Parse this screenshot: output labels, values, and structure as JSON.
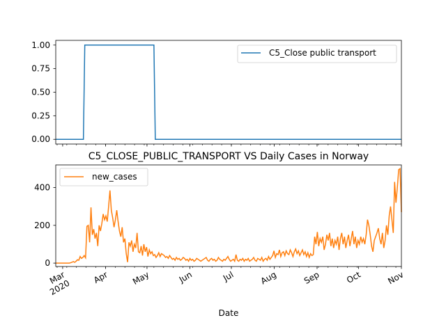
{
  "chart_data": [
    {
      "type": "line",
      "title": "",
      "xlabel": "",
      "ylabel": "",
      "x_range": [
        "2020-02-25",
        "2020-11-01"
      ],
      "ylim": [
        -0.05,
        1.05
      ],
      "y_ticks": [
        "0.00",
        "0.25",
        "0.50",
        "0.75",
        "1.00"
      ],
      "grid": false,
      "legend_position": "top-right",
      "series": [
        {
          "name": "C5_Close public transport",
          "color": "#1f77b4",
          "step_points": [
            {
              "date": "2020-02-25",
              "value": 0
            },
            {
              "date": "2020-03-16",
              "value": 0
            },
            {
              "date": "2020-03-17",
              "value": 1
            },
            {
              "date": "2020-05-06",
              "value": 1
            },
            {
              "date": "2020-05-07",
              "value": 0
            },
            {
              "date": "2020-11-01",
              "value": 0
            }
          ]
        }
      ]
    },
    {
      "type": "line",
      "title": "C5_CLOSE_PUBLIC_TRANSPORT VS Daily Cases in Norway",
      "xlabel": "Date",
      "ylabel": "",
      "x_range": [
        "2020-02-25",
        "2020-11-01"
      ],
      "ylim": [
        -18,
        520
      ],
      "y_ticks": [
        "0",
        "200",
        "400"
      ],
      "x_ticks": [
        {
          "label": "Mar\n2020",
          "date": "2020-03-01"
        },
        {
          "label": "Apr",
          "date": "2020-04-01"
        },
        {
          "label": "May",
          "date": "2020-05-01"
        },
        {
          "label": "Jun",
          "date": "2020-06-01"
        },
        {
          "label": "Jul",
          "date": "2020-07-01"
        },
        {
          "label": "Aug",
          "date": "2020-08-01"
        },
        {
          "label": "Sep",
          "date": "2020-09-01"
        },
        {
          "label": "Oct",
          "date": "2020-10-01"
        },
        {
          "label": "Nov",
          "date": "2020-11-01"
        }
      ],
      "grid": false,
      "legend_position": "top-left",
      "series": [
        {
          "name": "new_cases",
          "color": "#ff7f0e",
          "start_date": "2020-02-25",
          "values": [
            0,
            0,
            0,
            0,
            0,
            0,
            0,
            0,
            0,
            0,
            0,
            2,
            5,
            8,
            4,
            10,
            18,
            15,
            35,
            25,
            30,
            40,
            28,
            195,
            200,
            110,
            295,
            150,
            180,
            130,
            160,
            90,
            200,
            170,
            210,
            260,
            230,
            250,
            220,
            300,
            385,
            280,
            240,
            190,
            230,
            280,
            220,
            170,
            140,
            190,
            110,
            130,
            50,
            5,
            110,
            90,
            120,
            60,
            100,
            80,
            160,
            60,
            55,
            90,
            40,
            100,
            60,
            85,
            35,
            70,
            50,
            60,
            40,
            45,
            30,
            40,
            55,
            35,
            50,
            45,
            40,
            30,
            35,
            25,
            40,
            30,
            20,
            25,
            15,
            30,
            20,
            25,
            15,
            20,
            30,
            25,
            15,
            20,
            10,
            25,
            15,
            20,
            10,
            15,
            25,
            20,
            15,
            10,
            15,
            20,
            25,
            30,
            15,
            10,
            20,
            25,
            15,
            20,
            10,
            15,
            30,
            20,
            15,
            10,
            20,
            15,
            25,
            35,
            20,
            10,
            15,
            20,
            10,
            45,
            15,
            10,
            20,
            15,
            25,
            10,
            20,
            15,
            25,
            10,
            15,
            20,
            30,
            15,
            10,
            25,
            20,
            15,
            30,
            10,
            20,
            25,
            15,
            35,
            20,
            30,
            40,
            65,
            30,
            50,
            45,
            70,
            35,
            55,
            60,
            40,
            65,
            50,
            45,
            70,
            55,
            35,
            60,
            75,
            50,
            65,
            40,
            55,
            70,
            45,
            60,
            35,
            55,
            30,
            50,
            40,
            45,
            140,
            100,
            165,
            90,
            130,
            110,
            140,
            70,
            100,
            150,
            120,
            160,
            90,
            130,
            80,
            120,
            100,
            140,
            70,
            130,
            160,
            100,
            140,
            80,
            120,
            150,
            90,
            130,
            170,
            100,
            140,
            80,
            120,
            100,
            140,
            110,
            130,
            100,
            150,
            230,
            200,
            150,
            90,
            60,
            120,
            140,
            160,
            185,
            130,
            100,
            160,
            80,
            120,
            200,
            150,
            250,
            300,
            230,
            160,
            430,
            320,
            400,
            495,
            500,
            270
          ]
        }
      ]
    }
  ]
}
